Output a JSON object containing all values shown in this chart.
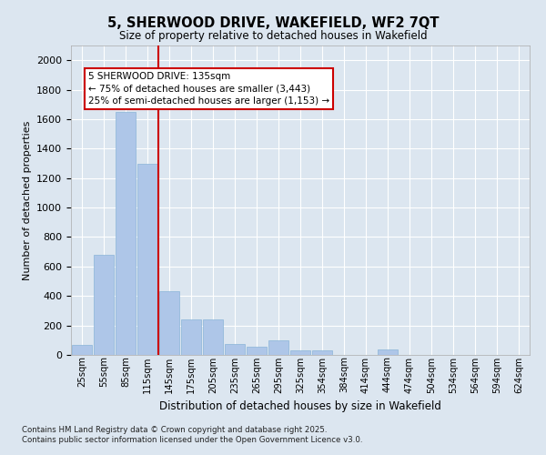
{
  "title": "5, SHERWOOD DRIVE, WAKEFIELD, WF2 7QT",
  "subtitle": "Size of property relative to detached houses in Wakefield",
  "xlabel": "Distribution of detached houses by size in Wakefield",
  "ylabel": "Number of detached properties",
  "categories": [
    "25sqm",
    "55sqm",
    "85sqm",
    "115sqm",
    "145sqm",
    "175sqm",
    "205sqm",
    "235sqm",
    "265sqm",
    "295sqm",
    "325sqm",
    "354sqm",
    "384sqm",
    "414sqm",
    "444sqm",
    "474sqm",
    "504sqm",
    "534sqm",
    "564sqm",
    "594sqm",
    "624sqm"
  ],
  "values": [
    65,
    680,
    1650,
    1300,
    430,
    240,
    240,
    75,
    55,
    100,
    30,
    30,
    0,
    0,
    40,
    0,
    0,
    0,
    0,
    0,
    0
  ],
  "bar_color": "#aec6e8",
  "bar_edge_color": "#8ab4d8",
  "background_color": "#dce6f0",
  "grid_color": "#ffffff",
  "annotation_text": "5 SHERWOOD DRIVE: 135sqm\n← 75% of detached houses are smaller (3,443)\n25% of semi-detached houses are larger (1,153) →",
  "annotation_box_color": "#ffffff",
  "annotation_box_edge": "#cc0000",
  "red_line_x": 3.5,
  "ylim": [
    0,
    2100
  ],
  "yticks": [
    0,
    200,
    400,
    600,
    800,
    1000,
    1200,
    1400,
    1600,
    1800,
    2000
  ],
  "footer_line1": "Contains HM Land Registry data © Crown copyright and database right 2025.",
  "footer_line2": "Contains public sector information licensed under the Open Government Licence v3.0."
}
